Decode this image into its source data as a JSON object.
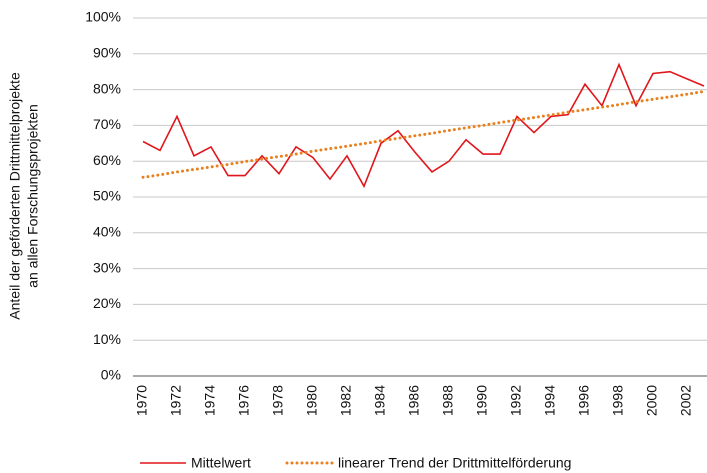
{
  "chart_data": {
    "type": "line",
    "y_label": [
      "Anteil der geförderten Drittmittelprojekte",
      "an allen Forschungsprojekten"
    ],
    "categories": [
      "1970",
      null,
      "1972",
      null,
      "1974",
      null,
      "1976",
      null,
      "1978",
      null,
      "1980",
      null,
      "1982",
      null,
      "1984",
      null,
      "1986",
      null,
      "1988",
      null,
      "1990",
      null,
      "1992",
      null,
      "1994",
      null,
      "1996",
      null,
      "1998",
      null,
      "2000",
      null,
      "2002",
      null
    ],
    "series": [
      {
        "name": "Mittelwert",
        "color": "#e0161c",
        "style": "solid",
        "values": [
          65.5,
          63,
          72.5,
          61.5,
          64,
          56,
          56,
          61.5,
          56.5,
          64,
          61,
          55,
          61.5,
          53,
          65,
          68.5,
          62.5,
          57,
          60,
          66,
          62,
          62,
          72.5,
          68,
          72.5,
          73,
          81.5,
          75.5,
          87,
          75.5,
          84.5,
          85,
          83,
          81
        ]
      },
      {
        "name": "linearer Trend der Drittmittelförderung",
        "color": "#e8801e",
        "style": "dotted",
        "values": [
          55.5,
          56.2,
          57.0,
          57.7,
          58.4,
          59.1,
          59.9,
          60.6,
          61.3,
          62.0,
          62.8,
          63.5,
          64.2,
          64.9,
          65.7,
          66.4,
          67.1,
          67.8,
          68.6,
          69.3,
          70.0,
          70.8,
          71.5,
          72.2,
          72.9,
          73.7,
          74.4,
          75.1,
          75.8,
          76.6,
          77.3,
          78.0,
          78.7,
          79.5
        ]
      }
    ],
    "ylim": [
      0,
      100
    ],
    "yticks": [
      {
        "value": 0,
        "label": "0%"
      },
      {
        "value": 10,
        "label": "10%"
      },
      {
        "value": 20,
        "label": "20%"
      },
      {
        "value": 30,
        "label": "30%"
      },
      {
        "value": 40,
        "label": "40%"
      },
      {
        "value": 50,
        "label": "50%"
      },
      {
        "value": 60,
        "label": "60%"
      },
      {
        "value": 70,
        "label": "70%"
      },
      {
        "value": 80,
        "label": "80%"
      },
      {
        "value": 90,
        "label": "90%"
      },
      {
        "value": 100,
        "label": "100%"
      }
    ],
    "grid": true,
    "legend": "bottom"
  }
}
